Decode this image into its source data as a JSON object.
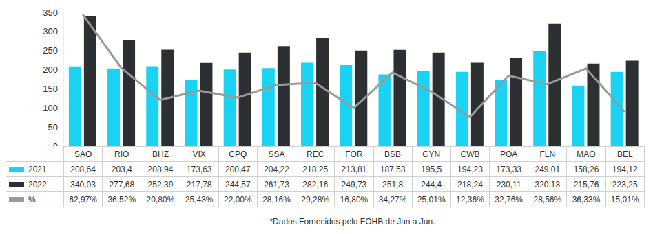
{
  "chart_data": {
    "type": "bar",
    "categories": [
      "SÃO",
      "RIO",
      "BHZ",
      "VIX",
      "CPQ",
      "SSA",
      "REC",
      "FOR",
      "BSB",
      "GYN",
      "CWB",
      "POA",
      "FLN",
      "MAO",
      "BEL"
    ],
    "series": [
      {
        "name": "2021",
        "type": "bar",
        "color": "#1ad3f2",
        "values": [
          208.64,
          203.4,
          208.94,
          173.63,
          200.47,
          204.22,
          218.25,
          213.81,
          187.53,
          195.5,
          194.23,
          173.33,
          249.01,
          158.26,
          194.12
        ],
        "value_labels": [
          "208,64",
          "203,4",
          "208,94",
          "173,63",
          "200,47",
          "204,22",
          "218,25",
          "213,81",
          "187,53",
          "195,5",
          "194,23",
          "173,33",
          "249,01",
          "158,26",
          "194,12"
        ]
      },
      {
        "name": "2022",
        "type": "bar",
        "color": "#2d3033",
        "values": [
          340.03,
          277.68,
          252.39,
          217.78,
          244.57,
          261.73,
          282.16,
          249.73,
          251.8,
          244.4,
          218.24,
          230.11,
          320.13,
          215.76,
          223.25
        ],
        "value_labels": [
          "340,03",
          "277,68",
          "252,39",
          "217,78",
          "244,57",
          "261,73",
          "282,16",
          "249,73",
          "251,8",
          "244,4",
          "218,24",
          "230,11",
          "320,13",
          "215,76",
          "223,25"
        ]
      },
      {
        "name": "%",
        "type": "line",
        "color": "#999999",
        "axis": "y2",
        "values": [
          62.97,
          36.52,
          20.8,
          25.43,
          22.0,
          28.16,
          29.28,
          16.8,
          34.27,
          25.01,
          12.36,
          32.76,
          28.56,
          36.33,
          15.01
        ],
        "value_labels": [
          "62,97%",
          "36,52%",
          "20,80%",
          "25,43%",
          "22,00%",
          "28,16%",
          "29,28%",
          "16,80%",
          "34,27%",
          "25,01%",
          "12,36%",
          "32,76%",
          "28,56%",
          "36,33%",
          "15,01%"
        ]
      }
    ],
    "ylim": [
      0,
      350
    ],
    "yticks": [
      0,
      50,
      100,
      150,
      200,
      250,
      300,
      350
    ],
    "y2lim": [
      -2,
      64
    ],
    "grid": false,
    "note": "*Dados Fornecidos pelo FOHB de Jan a Jun."
  }
}
